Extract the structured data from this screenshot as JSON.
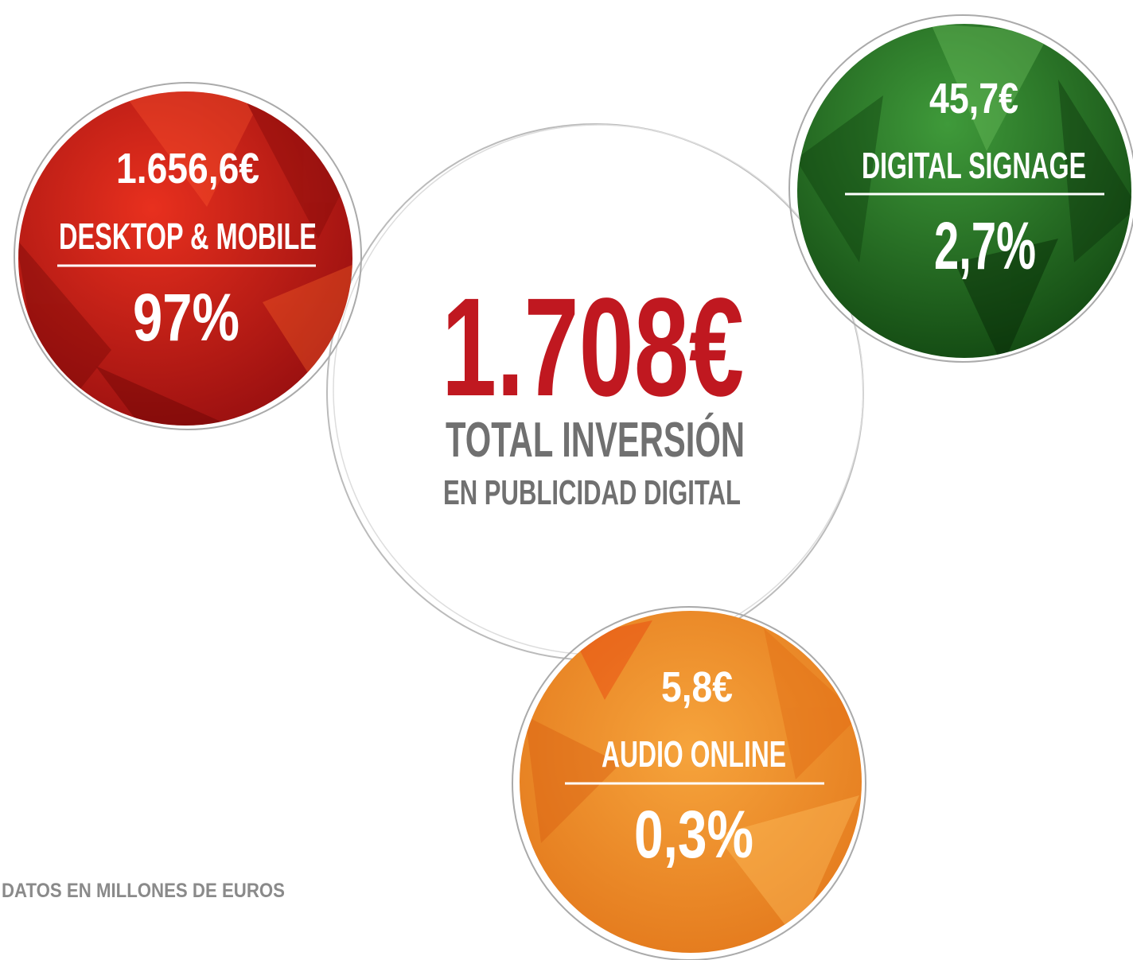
{
  "circles": [
    {
      "amount": "1.656,6€",
      "label": "DESKTOP & MOBILE",
      "share": "97%"
    },
    {
      "amount": "45,7€",
      "label": "DIGITAL SIGNAGE",
      "share": "2,7%"
    },
    {
      "amount": "5,8€",
      "label": "AUDIO ONLINE",
      "share": "0,3%"
    }
  ],
  "total": {
    "amount": "1.708€",
    "title": "TOTAL INVERSIÓN",
    "subtitle": "EN PUBLICIDAD DIGITAL"
  },
  "footnote": "DATOS EN MILLONES DE EUROS"
}
